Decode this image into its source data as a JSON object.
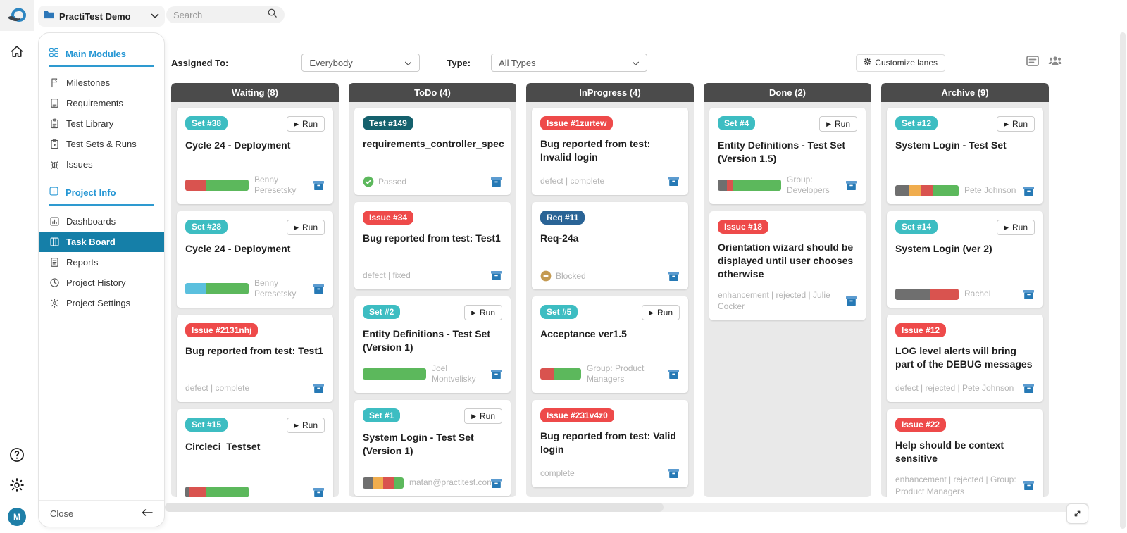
{
  "app_title": "PractiTest Demo",
  "rail": {
    "avatar_initial": "M"
  },
  "sidebar": {
    "project_selector": {
      "label": "PractiTest Demo"
    },
    "search_placeholder": "Search",
    "sections": [
      {
        "label": "Main Modules",
        "icon": "grid-icon",
        "items": [
          {
            "label": "Milestones",
            "icon": "flag-icon"
          },
          {
            "label": "Requirements",
            "icon": "requirements-icon"
          },
          {
            "label": "Test Library",
            "icon": "test-library-icon"
          },
          {
            "label": "Test Sets & Runs",
            "icon": "test-sets-icon"
          },
          {
            "label": "Issues",
            "icon": "bug-icon"
          }
        ]
      },
      {
        "label": "Project Info",
        "icon": "info-icon",
        "items": [
          {
            "label": "Dashboards",
            "icon": "dashboard-icon"
          },
          {
            "label": "Task Board",
            "icon": "task-board-icon",
            "active": true
          },
          {
            "label": "Reports",
            "icon": "report-icon"
          },
          {
            "label": "Project History",
            "icon": "history-icon"
          },
          {
            "label": "Project Settings",
            "icon": "settings-icon"
          }
        ]
      }
    ],
    "close_label": "Close"
  },
  "toolbar": {
    "assigned_to_label": "Assigned To:",
    "assigned_to_value": "Everybody",
    "type_label": "Type:",
    "type_value": "All Types",
    "customize_lanes_label": "Customize lanes"
  },
  "board": {
    "run_label": "Run",
    "lanes": [
      {
        "title": "Waiting (8)",
        "cards": [
          {
            "type": "set",
            "badge": "Set #38",
            "title": "Cycle 24 - Deployment",
            "run": true,
            "progress": [
              {
                "color": "red",
                "pct": 33
              },
              {
                "color": "green",
                "pct": 67
              }
            ],
            "assignee": "Benny Peresetsky"
          },
          {
            "type": "set",
            "badge": "Set #28",
            "title": "Cycle 24 - Deployment",
            "run": true,
            "progress": [
              {
                "color": "blue",
                "pct": 33
              },
              {
                "color": "green",
                "pct": 67
              }
            ],
            "assignee": "Benny Peresetsky"
          },
          {
            "type": "issue",
            "badge": "Issue #2131nhj",
            "title": "Bug reported from test: Test1",
            "meta": "defect | complete"
          },
          {
            "type": "set",
            "badge": "Set #15",
            "title": "Circleci_Testset",
            "run": true,
            "progress": [
              {
                "color": "gray",
                "pct": 6
              },
              {
                "color": "red",
                "pct": 27
              },
              {
                "color": "green",
                "pct": 67
              }
            ],
            "assignee": ""
          },
          {
            "partial": true
          }
        ]
      },
      {
        "title": "ToDo (4)",
        "cards": [
          {
            "type": "test",
            "badge": "Test #149",
            "title": "requirements_controller_spec",
            "status": {
              "icon": "check",
              "label": "Passed"
            }
          },
          {
            "type": "issue",
            "badge": "Issue #34",
            "title": "Bug reported from test: Test1",
            "meta": "defect | fixed"
          },
          {
            "type": "set",
            "badge": "Set #2",
            "title": "Entity Definitions - Test Set (Version 1)",
            "run": true,
            "progress": [
              {
                "color": "green",
                "pct": 100
              }
            ],
            "assignee": "Joel Montvelisky"
          },
          {
            "type": "set",
            "badge": "Set #1",
            "title": "System Login - Test Set (Version 1)",
            "run": true,
            "progress": [
              {
                "color": "gray",
                "pct": 25
              },
              {
                "color": "orange",
                "pct": 25
              },
              {
                "color": "red",
                "pct": 25
              },
              {
                "color": "green",
                "pct": 25
              }
            ],
            "assignee": "matan@practitest.com"
          }
        ]
      },
      {
        "title": "InProgress (4)",
        "cards": [
          {
            "type": "issue",
            "badge": "Issue #1zurtew",
            "title": "Bug reported from test: Invalid login",
            "meta": "defect | complete"
          },
          {
            "type": "req",
            "badge": "Req #11",
            "title": "Req-24a",
            "status": {
              "icon": "minus",
              "label": "Blocked"
            }
          },
          {
            "type": "set",
            "badge": "Set #5",
            "title": "Acceptance ver1.5",
            "run": true,
            "progress": [
              {
                "color": "red",
                "pct": 35
              },
              {
                "color": "green",
                "pct": 65
              }
            ],
            "assignee": "Group: Product Managers"
          },
          {
            "type": "issue",
            "badge": "Issue #231v4z0",
            "title": "Bug reported from test: Valid login",
            "meta": "complete"
          }
        ]
      },
      {
        "title": "Done (2)",
        "cards": [
          {
            "type": "set",
            "badge": "Set #4",
            "title": "Entity Definitions - Test Set (Version 1.5)",
            "run": true,
            "progress": [
              {
                "color": "gray",
                "pct": 14
              },
              {
                "color": "red",
                "pct": 10
              },
              {
                "color": "green",
                "pct": 76
              }
            ],
            "assignee": "Group: Developers"
          },
          {
            "type": "issue",
            "badge": "Issue #18",
            "title": "Orientation wizard should be displayed until user chooses otherwise",
            "meta": "enhancement | rejected | Julie Cocker"
          }
        ]
      },
      {
        "title": "Archive (9)",
        "cards": [
          {
            "type": "set",
            "badge": "Set #12",
            "title": "System Login - Test Set",
            "run": true,
            "progress": [
              {
                "color": "gray",
                "pct": 21
              },
              {
                "color": "orange",
                "pct": 19
              },
              {
                "color": "red",
                "pct": 19
              },
              {
                "color": "green",
                "pct": 41
              }
            ],
            "assignee": "Pete Johnson"
          },
          {
            "type": "set",
            "badge": "Set #14",
            "title": "System Login (ver 2)",
            "run": true,
            "progress": [
              {
                "color": "gray",
                "pct": 55
              },
              {
                "color": "red",
                "pct": 45
              }
            ],
            "assignee": "Rachel"
          },
          {
            "type": "issue",
            "badge": "Issue #12",
            "title": "LOG level alerts will bring part of the DEBUG messages",
            "meta": "defect | rejected | Pete Johnson"
          },
          {
            "type": "issue",
            "badge": "Issue #22",
            "title": "Help should be context sensitive",
            "meta": "enhancement | rejected | Group: Product Managers"
          },
          {
            "partial": true
          }
        ]
      }
    ]
  },
  "palette": {
    "set_badge": "#3dbdc2",
    "test_badge": "#15616d",
    "issue_badge": "#ee4a4a",
    "req_badge": "#2a6496",
    "red": "#d9534f",
    "green": "#5cb85c",
    "blue": "#5bc0de",
    "orange": "#f0ad4e",
    "gray": "#6f6f6f",
    "passed_green": "#5cb85c",
    "blocked_tan": "#c49a52",
    "archive_blue": "#2679b5",
    "lane_header": "#4b4b4b",
    "active_nav": "#157fa8",
    "accent": "#2496d4"
  }
}
